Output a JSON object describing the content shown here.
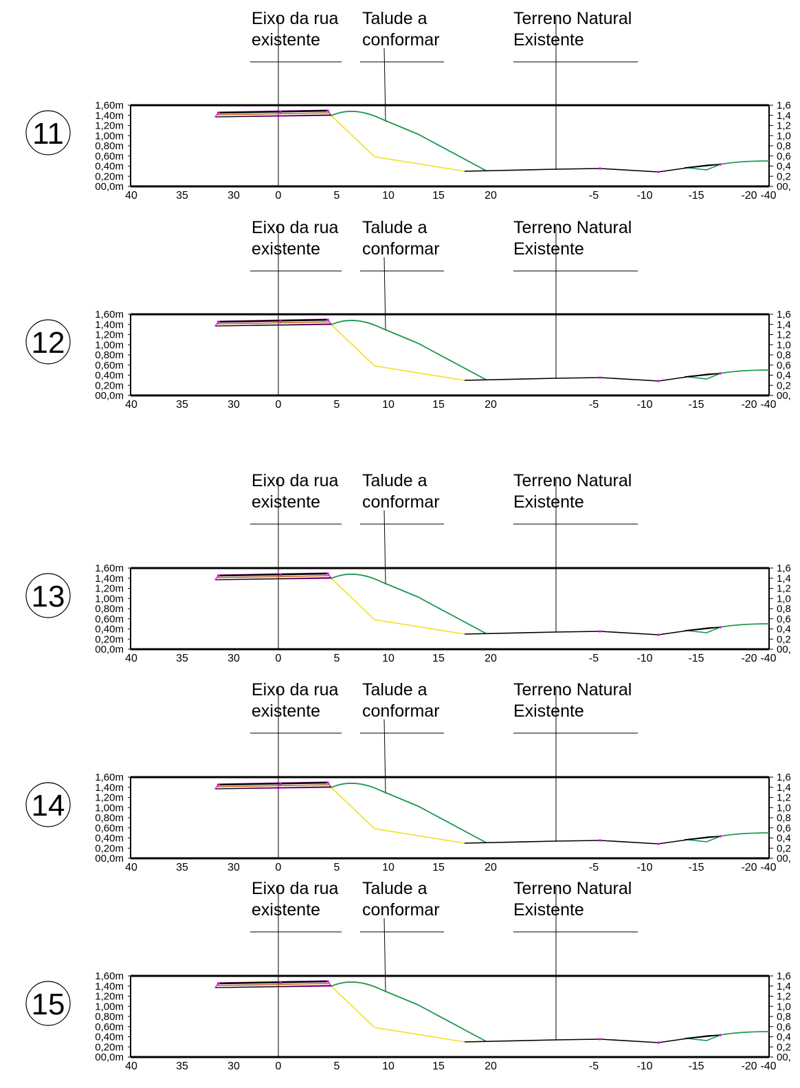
{
  "callouts": {
    "road_axis_line1": "Eixo da rua",
    "road_axis_line2": "existente",
    "slope_line1": "Talude a",
    "slope_line2": "conformar",
    "terrain_line1": "Terreno Natural",
    "terrain_line2": "Existente"
  },
  "axes": {
    "x_ticks": [
      "40",
      "35",
      "30",
      "0",
      "5",
      "10",
      "15",
      "20",
      "-5",
      "-10",
      "-15",
      "-20",
      "-40"
    ],
    "y_labels_left": [
      "1,60m",
      "1,40m",
      "1,20m",
      "1,00m",
      "0,80m",
      "0,60m",
      "0,40m",
      "0,20m",
      "00,0m"
    ],
    "y_labels_right": [
      "1,6",
      "1,4",
      "1,2",
      "1,0",
      "0,8",
      "0,6",
      "0,4",
      "0,2",
      "00,"
    ]
  },
  "colors": {
    "frame": "#000000",
    "existing_terrain": "#1a9850",
    "design_slope": "#f0e020",
    "pavement": "#c06020",
    "marker": "#e010e0"
  },
  "sections": [
    {
      "number": "11"
    },
    {
      "number": "12"
    },
    {
      "number": "13"
    },
    {
      "number": "14"
    },
    {
      "number": "15"
    }
  ]
}
